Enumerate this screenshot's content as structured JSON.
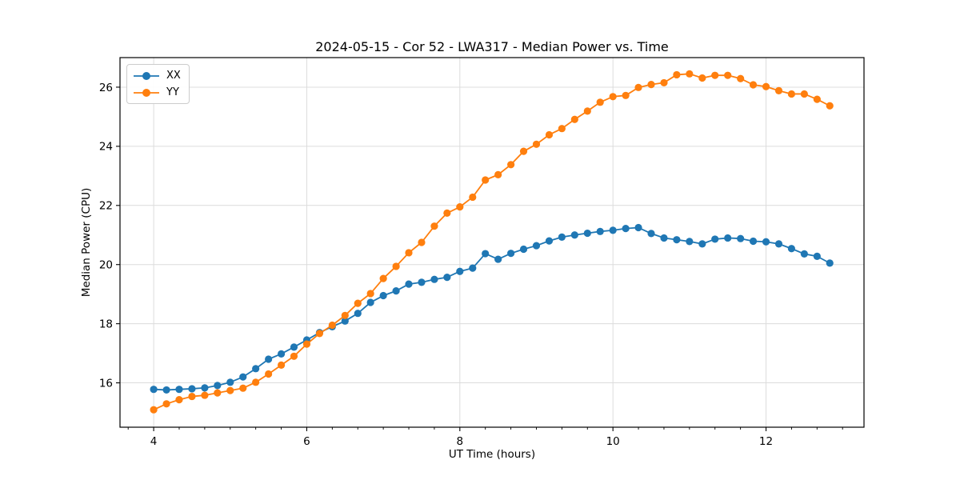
{
  "window": {
    "background": "#ffffff"
  },
  "chart_data": {
    "type": "line",
    "title": "2024-05-15 - Cor 52 - LWA317 - Median Power vs. Time",
    "xlabel": "UT Time (hours)",
    "ylabel": "Median Power (CPU)",
    "xlim": [
      3.56,
      13.28
    ],
    "ylim": [
      14.5,
      27.0
    ],
    "xticks": [
      4,
      6,
      8,
      10,
      12
    ],
    "yticks": [
      16,
      18,
      20,
      22,
      24,
      26
    ],
    "x_minor_step_hours": 0.33333,
    "grid": true,
    "legend_position": "upper left",
    "x_cadence_minutes": 10,
    "x": [
      4.0,
      4.167,
      4.333,
      4.5,
      4.667,
      4.833,
      5.0,
      5.167,
      5.333,
      5.5,
      5.667,
      5.833,
      6.0,
      6.167,
      6.333,
      6.5,
      6.667,
      6.833,
      7.0,
      7.167,
      7.333,
      7.5,
      7.667,
      7.833,
      8.0,
      8.167,
      8.333,
      8.5,
      8.667,
      8.833,
      9.0,
      9.167,
      9.333,
      9.5,
      9.667,
      9.833,
      10.0,
      10.167,
      10.333,
      10.5,
      10.667,
      10.833,
      11.0,
      11.167,
      11.333,
      11.5,
      11.667,
      11.833,
      12.0,
      12.167,
      12.333,
      12.5,
      12.667,
      12.833
    ],
    "series": [
      {
        "name": "XX",
        "color": "#1f77b4",
        "values": [
          15.78,
          15.76,
          15.78,
          15.8,
          15.83,
          15.91,
          16.02,
          16.2,
          16.48,
          16.8,
          16.98,
          17.21,
          17.45,
          17.7,
          17.9,
          18.09,
          18.35,
          18.72,
          18.95,
          19.11,
          19.34,
          19.4,
          19.5,
          19.57,
          19.77,
          19.88,
          20.37,
          20.18,
          20.38,
          20.52,
          20.64,
          20.8,
          20.93,
          21.0,
          21.06,
          21.12,
          21.16,
          21.22,
          21.25,
          21.05,
          20.9,
          20.84,
          20.78,
          20.7,
          20.86,
          20.9,
          20.88,
          20.79,
          20.77,
          20.7,
          20.54,
          20.36,
          20.28,
          20.05
        ]
      },
      {
        "name": "YY",
        "color": "#ff7f0e",
        "values": [
          15.09,
          15.29,
          15.43,
          15.54,
          15.58,
          15.66,
          15.74,
          15.82,
          16.02,
          16.3,
          16.6,
          16.9,
          17.31,
          17.67,
          17.95,
          18.28,
          18.69,
          19.02,
          19.53,
          19.94,
          20.4,
          20.75,
          21.3,
          21.74,
          21.95,
          22.28,
          22.86,
          23.04,
          23.38,
          23.83,
          24.07,
          24.39,
          24.6,
          24.91,
          25.19,
          25.49,
          25.68,
          25.72,
          25.99,
          26.09,
          26.15,
          26.42,
          26.45,
          26.31,
          26.4,
          26.4,
          26.29,
          26.08,
          26.02,
          25.88,
          25.77,
          25.77,
          25.59,
          25.37
        ]
      }
    ],
    "style": {
      "grid_color": "#dcdcdc",
      "spine_color": "#000000",
      "tick_color": "#000000",
      "text_color": "#000000",
      "marker_radius": 4.6,
      "line_width": 1.8
    }
  }
}
